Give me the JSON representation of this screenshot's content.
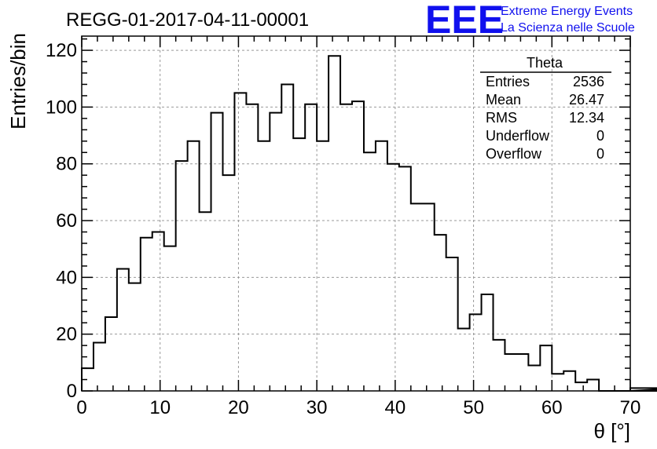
{
  "chart_data": {
    "type": "histogram",
    "title": "REGG-01-2017-04-11-00001",
    "xlabel": "θ [°]",
    "ylabel": "Entries/bin",
    "xlim": [
      0,
      70
    ],
    "ylim": [
      0,
      125
    ],
    "grid": true,
    "bin_width": 1.5,
    "x_ticks": [
      "0",
      "10",
      "20",
      "30",
      "40",
      "50",
      "60",
      "70"
    ],
    "y_ticks": [
      "0",
      "20",
      "40",
      "60",
      "80",
      "100",
      "120"
    ],
    "series": [
      {
        "name": "Theta",
        "values": [
          8,
          17,
          26,
          43,
          38,
          54,
          56,
          51,
          81,
          88,
          63,
          98,
          76,
          105,
          101,
          88,
          98,
          108,
          89,
          101,
          88,
          118,
          101,
          102,
          84,
          88,
          80,
          79,
          66,
          66,
          55,
          47,
          22,
          27,
          34,
          18,
          13,
          13,
          9,
          16,
          6,
          7,
          3,
          4,
          0,
          0,
          0,
          0,
          0,
          0,
          0,
          1
        ]
      }
    ],
    "stats_box": {
      "title": "Theta",
      "position": "top-right",
      "rows": [
        {
          "label": "Entries",
          "value": "2536"
        },
        {
          "label": "Mean",
          "value": "26.47"
        },
        {
          "label": "RMS",
          "value": "12.34"
        },
        {
          "label": "Underflow",
          "value": "0"
        },
        {
          "label": "Overflow",
          "value": "0"
        }
      ]
    }
  },
  "logo": {
    "letters": "EEE",
    "line1": "Extreme Energy Events",
    "line2": "La Scienza nelle Scuole",
    "color": "#1010ee"
  }
}
